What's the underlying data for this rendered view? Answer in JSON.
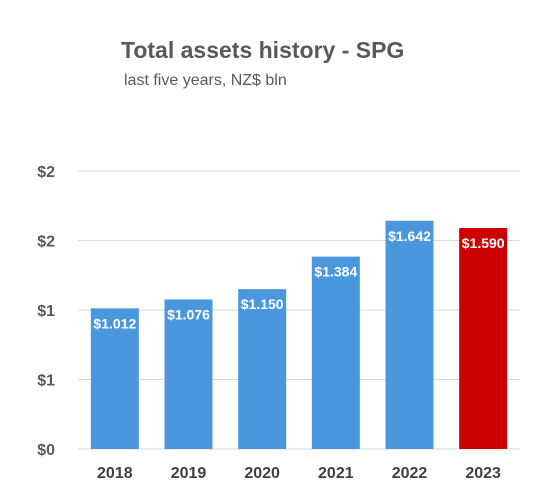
{
  "chart_data": {
    "type": "bar",
    "title": "Total assets history - SPG",
    "subtitle": "last five years, NZ$ bln",
    "categories": [
      "2018",
      "2019",
      "2020",
      "2021",
      "2022",
      "2023"
    ],
    "values": [
      1.012,
      1.076,
      1.15,
      1.384,
      1.642,
      1.59
    ],
    "data_labels": [
      "$1.012",
      "$1.076",
      "$1.150",
      "$1.384",
      "$1.642",
      "$1.590"
    ],
    "y_tick_labels": [
      "$0",
      "$1",
      "$1",
      "$2",
      "$2"
    ],
    "y_tick_values": [
      0,
      0.5,
      1.0,
      1.5,
      2.0
    ],
    "ylim": [
      0,
      2.0
    ],
    "xlabel": "",
    "ylabel": "",
    "grid": true,
    "colors": {
      "bar": "#4a97de",
      "highlight": "#cc0000",
      "grid": "#d9d9d9"
    },
    "highlight_index": 5
  }
}
